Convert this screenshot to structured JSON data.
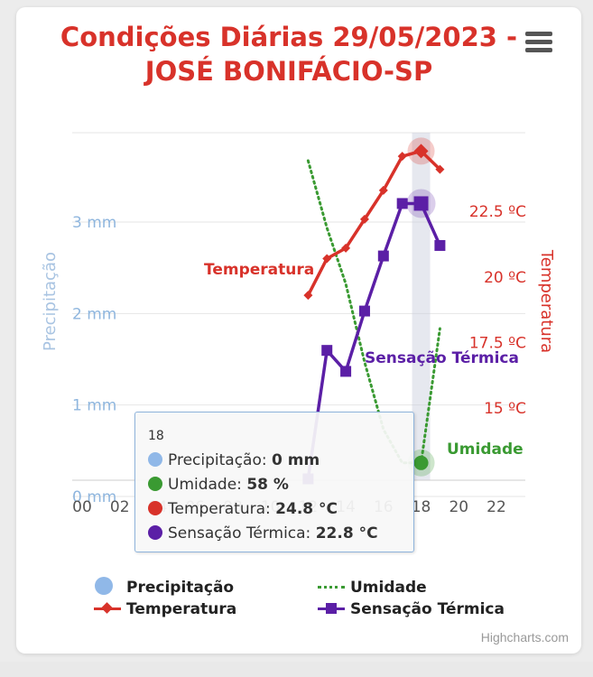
{
  "title_line1": "Condições Diárias 29/05/2023 -",
  "title_line2": "JOSÉ BONIFÁCIO-SP",
  "credits": "Highcharts.com",
  "icons": {
    "menu": "hamburger-menu-icon"
  },
  "colors": {
    "precipitacao": "#90b8e8",
    "umidade": "#3a9a32",
    "temperatura": "#d8322a",
    "sensacao": "#5b1fa6",
    "title": "#d8322a"
  },
  "chart_data": {
    "type": "line",
    "x_categories": [
      "00",
      "02",
      "04",
      "06",
      "08",
      "10",
      "12",
      "14",
      "16",
      "18",
      "20",
      "22"
    ],
    "y_axes": [
      {
        "title": "Precipitação",
        "ticks": [
          "0 mm",
          "1 mm",
          "2 mm",
          "3 mm"
        ],
        "range": [
          0,
          3.8
        ]
      },
      {
        "title": "Temperatura",
        "ticks": [
          "15 ºC",
          "17.5 ºC",
          "20 ºC",
          "22.5 ºC"
        ],
        "range": [
          12.25,
          25.5
        ]
      }
    ],
    "series": [
      {
        "name": "Precipitação",
        "type": "column",
        "unit": "mm",
        "x": [
          18
        ],
        "values": [
          0
        ]
      },
      {
        "name": "Temperatura",
        "type": "line",
        "unit": "°C",
        "label": "Temperatura",
        "x": [
          12,
          13,
          14,
          15,
          16,
          17,
          18,
          19
        ],
        "values": [
          19.3,
          20.7,
          21.1,
          22.2,
          23.3,
          24.6,
          24.8,
          24.1
        ]
      },
      {
        "name": "Sensação Térmica",
        "type": "line",
        "unit": "°C",
        "label": "Sensação Térmica",
        "x": [
          12,
          13,
          14,
          15,
          16,
          17,
          18,
          19
        ],
        "values": [
          12.3,
          17.2,
          16.4,
          18.7,
          20.8,
          22.8,
          22.8,
          21.2
        ]
      },
      {
        "name": "Umidade",
        "type": "dotted-line",
        "unit": "%",
        "label": "Umidade",
        "x": [
          12,
          13,
          14,
          15,
          16,
          17,
          18,
          19
        ],
        "values": [
          85,
          79,
          74,
          67,
          61,
          58,
          58,
          70
        ]
      }
    ],
    "highlight_x": 18
  },
  "tooltip": {
    "header": "18",
    "rows": [
      {
        "label": "Precipitação: ",
        "value": "0 mm"
      },
      {
        "label": "Umidade: ",
        "value": "58 %"
      },
      {
        "label": "Temperatura: ",
        "value": "24.8 °C"
      },
      {
        "label": "Sensação Térmica: ",
        "value": "22.8 °C"
      }
    ]
  },
  "legend": {
    "precipitacao": "Precipitação",
    "umidade": "Umidade",
    "temperatura": "Temperatura",
    "sensacao": "Sensação Térmica"
  }
}
